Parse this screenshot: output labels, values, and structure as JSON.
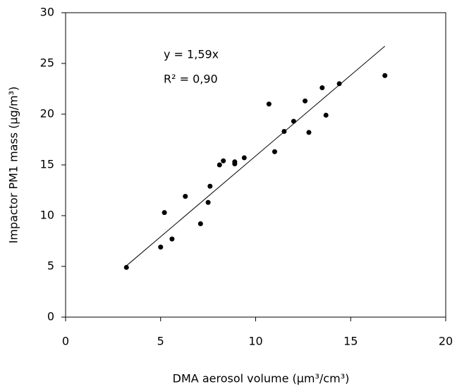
{
  "chart_data": {
    "type": "scatter",
    "x_label": "DMA aerosol volume (µm³/cm³)",
    "y_label": "Impactor PM1 mass (µg/m³)",
    "annotations": [
      "y = 1,59x",
      "R² = 0,90"
    ],
    "x": [
      3.2,
      5.0,
      5.2,
      5.6,
      6.3,
      7.1,
      7.5,
      7.6,
      8.1,
      8.3,
      8.9,
      8.9,
      9.4,
      10.7,
      11.0,
      11.5,
      12.0,
      12.6,
      12.8,
      13.5,
      13.7,
      14.4,
      16.8
    ],
    "values": [
      4.9,
      6.9,
      10.3,
      7.7,
      11.9,
      9.2,
      11.3,
      12.9,
      15.0,
      15.4,
      15.1,
      15.3,
      15.7,
      21.0,
      16.3,
      18.3,
      19.3,
      21.3,
      18.2,
      22.6,
      19.9,
      23.0,
      23.8
    ],
    "color": "#000000",
    "trend_line": {
      "x": [
        3.1,
        16.8
      ],
      "values": [
        4.9,
        26.7
      ]
    },
    "xlim": [
      0,
      20
    ],
    "xticks": [
      0,
      5,
      10,
      15,
      20
    ],
    "ylim": [
      0,
      30
    ],
    "yticks": [
      0,
      5,
      10,
      15,
      20,
      25,
      30
    ],
    "grid": false
  }
}
